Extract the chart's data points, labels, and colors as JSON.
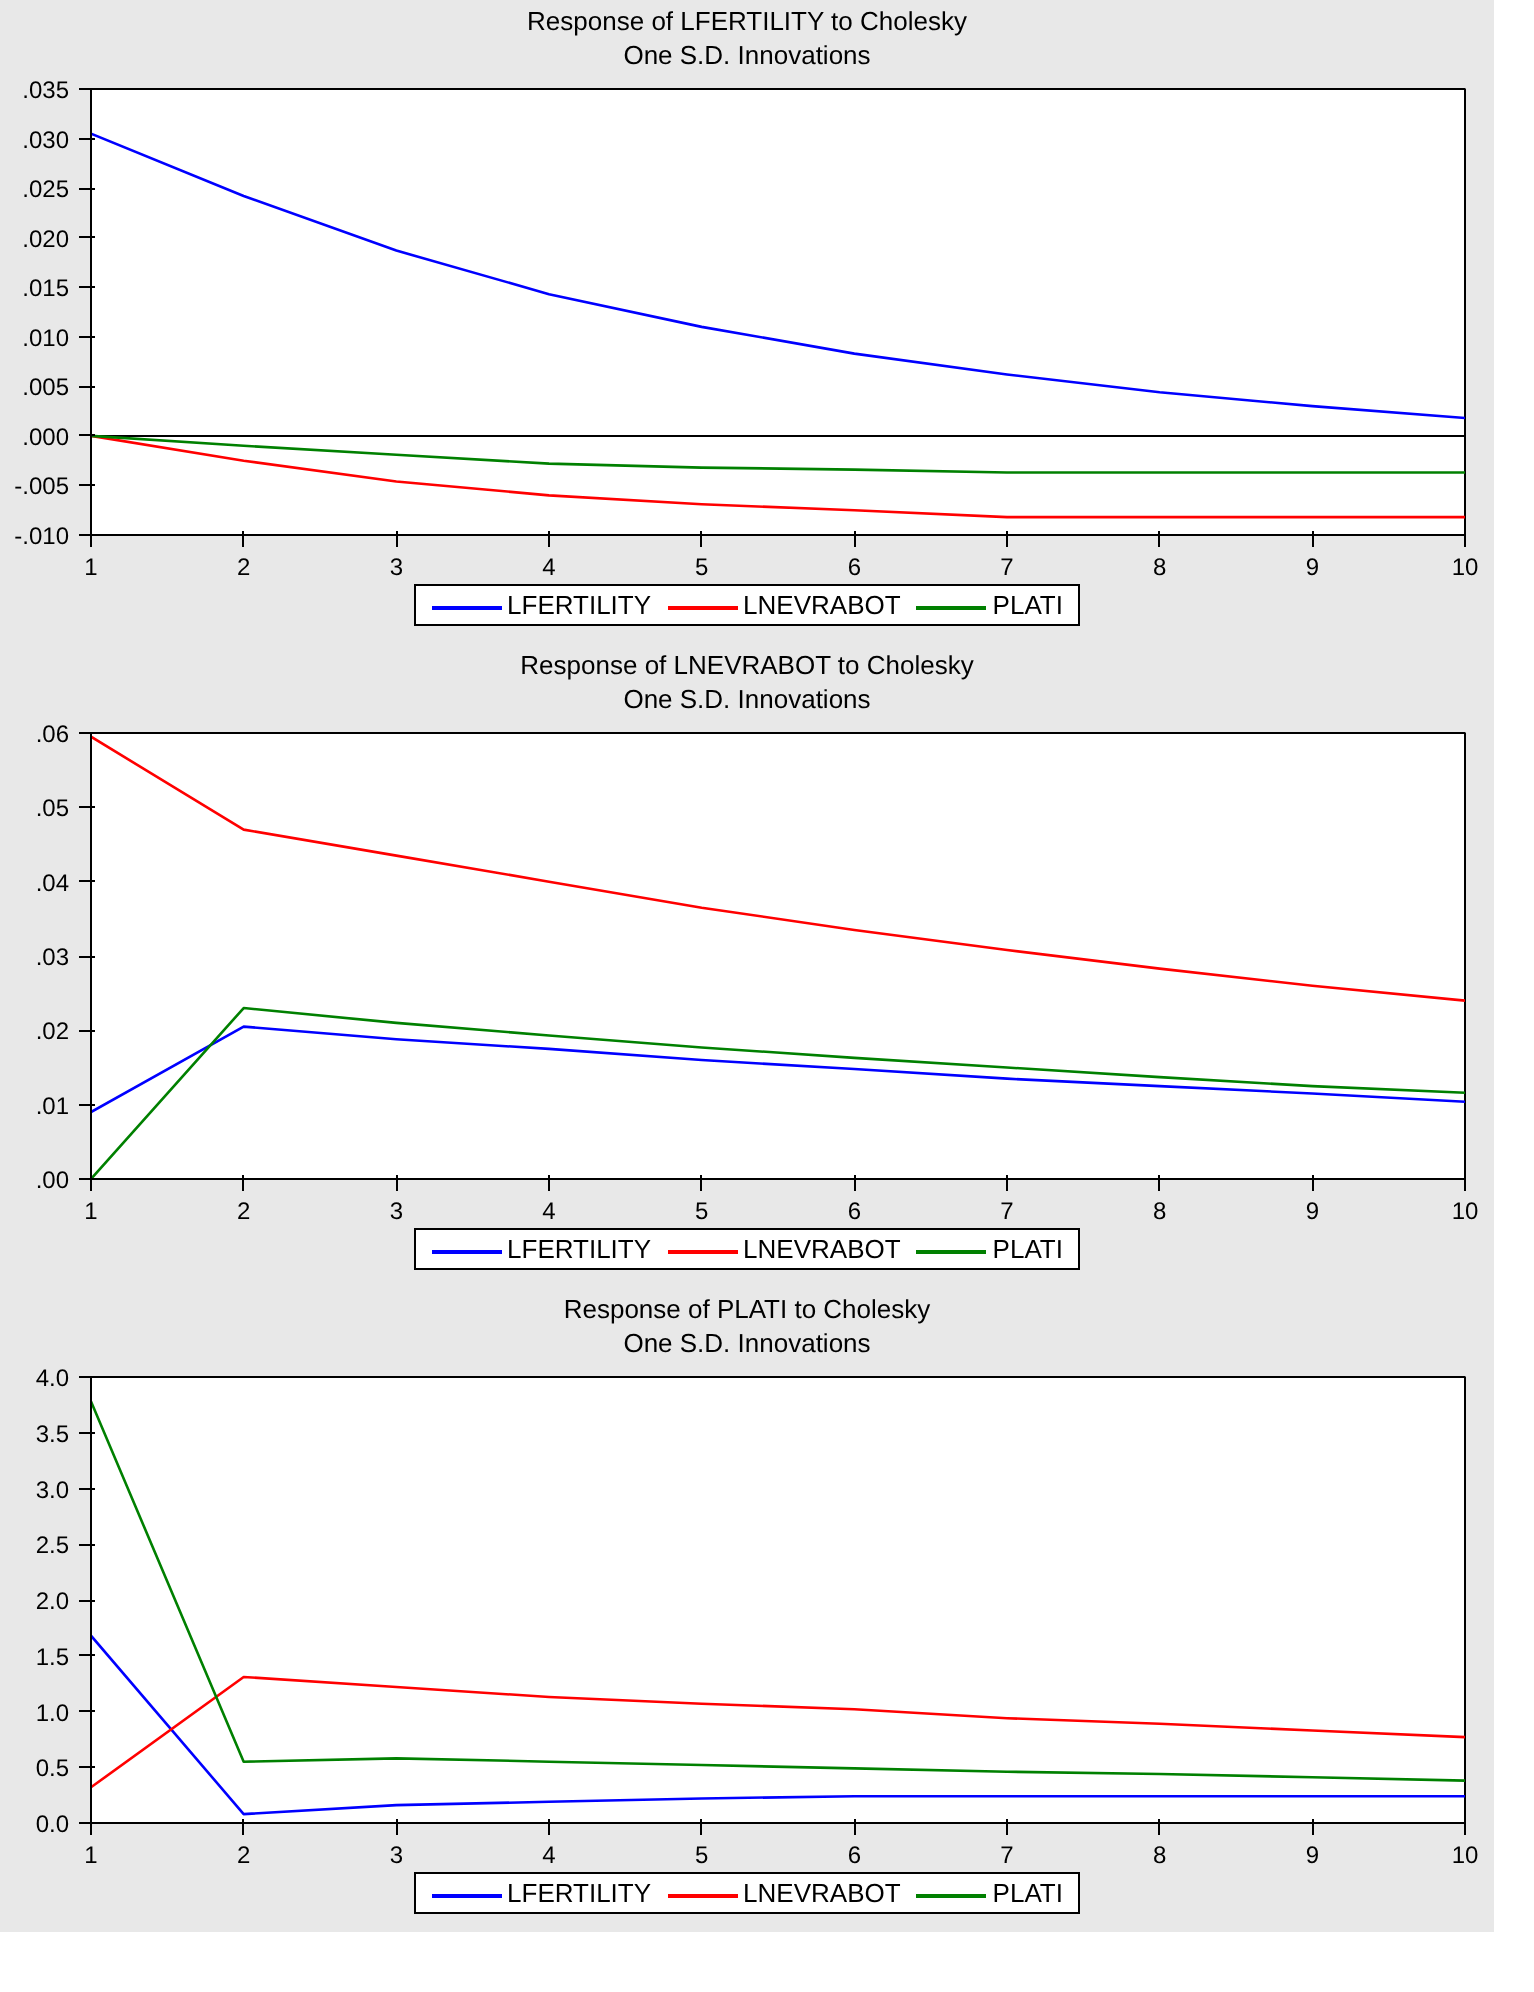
{
  "chart_data": [
    {
      "type": "line",
      "title": "Response of LFERTILITY to Cholesky",
      "subtitle": "One S.D. Innovations",
      "x": [
        1,
        2,
        3,
        4,
        5,
        6,
        7,
        8,
        9,
        10
      ],
      "xlim": [
        1,
        10
      ],
      "xticks": [
        1,
        2,
        3,
        4,
        5,
        6,
        7,
        8,
        9,
        10
      ],
      "ylim": [
        -0.01,
        0.035
      ],
      "yticks": [
        {
          "value": -0.01,
          "label": "-.010"
        },
        {
          "value": -0.005,
          "label": "-.005"
        },
        {
          "value": 0,
          "label": ".000"
        },
        {
          "value": 0.005,
          "label": ".005"
        },
        {
          "value": 0.01,
          "label": ".010"
        },
        {
          "value": 0.015,
          "label": ".015"
        },
        {
          "value": 0.02,
          "label": ".020"
        },
        {
          "value": 0.025,
          "label": ".025"
        },
        {
          "value": 0.03,
          "label": ".030"
        },
        {
          "value": 0.035,
          "label": ".035"
        }
      ],
      "grid": false,
      "legend": "bottom",
      "marker": "none",
      "line_style": "solid",
      "ref_lines": [
        {
          "axis": "y",
          "value": 0,
          "color": "#000000"
        }
      ],
      "series": [
        {
          "name": "LFERTILITY",
          "color": "#0000ff",
          "values": [
            0.0305,
            0.0242,
            0.0187,
            0.0143,
            0.011,
            0.0083,
            0.0062,
            0.0044,
            0.003,
            0.0018
          ]
        },
        {
          "name": "LNEVRABOT",
          "color": "#ff0000",
          "values": [
            0,
            -0.0025,
            -0.0046,
            -0.006,
            -0.0069,
            -0.0075,
            -0.0082,
            -0.0082,
            -0.0082,
            -0.0082
          ]
        },
        {
          "name": "PLATI",
          "color": "#008000",
          "values": [
            0,
            -0.001,
            -0.0019,
            -0.0028,
            -0.0032,
            -0.0034,
            -0.0037,
            -0.0037,
            -0.0037,
            -0.0037
          ]
        }
      ]
    },
    {
      "type": "line",
      "title": "Response of LNEVRABOT to Cholesky",
      "subtitle": "One S.D. Innovations",
      "x": [
        1,
        2,
        3,
        4,
        5,
        6,
        7,
        8,
        9,
        10
      ],
      "xlim": [
        1,
        10
      ],
      "xticks": [
        1,
        2,
        3,
        4,
        5,
        6,
        7,
        8,
        9,
        10
      ],
      "ylim": [
        0,
        0.06
      ],
      "yticks": [
        {
          "value": 0,
          "label": ".00"
        },
        {
          "value": 0.01,
          "label": ".01"
        },
        {
          "value": 0.02,
          "label": ".02"
        },
        {
          "value": 0.03,
          "label": ".03"
        },
        {
          "value": 0.04,
          "label": ".04"
        },
        {
          "value": 0.05,
          "label": ".05"
        },
        {
          "value": 0.06,
          "label": ".06"
        }
      ],
      "grid": false,
      "legend": "bottom",
      "marker": "none",
      "line_style": "solid",
      "series": [
        {
          "name": "LFERTILITY",
          "color": "#0000ff",
          "values": [
            0.009,
            0.0205,
            0.0188,
            0.0175,
            0.016,
            0.0148,
            0.0135,
            0.0125,
            0.0115,
            0.0104
          ]
        },
        {
          "name": "LNEVRABOT",
          "color": "#ff0000",
          "values": [
            0.0595,
            0.047,
            0.0435,
            0.04,
            0.0365,
            0.0335,
            0.0308,
            0.0283,
            0.026,
            0.024
          ]
        },
        {
          "name": "PLATI",
          "color": "#008000",
          "values": [
            0,
            0.023,
            0.021,
            0.0193,
            0.0177,
            0.0163,
            0.015,
            0.0137,
            0.0125,
            0.0116
          ]
        }
      ]
    },
    {
      "type": "line",
      "title": "Response of PLATI to Cholesky",
      "subtitle": "One S.D. Innovations",
      "x": [
        1,
        2,
        3,
        4,
        5,
        6,
        7,
        8,
        9,
        10
      ],
      "xlim": [
        1,
        10
      ],
      "xticks": [
        1,
        2,
        3,
        4,
        5,
        6,
        7,
        8,
        9,
        10
      ],
      "ylim": [
        0,
        4
      ],
      "yticks": [
        {
          "value": 0,
          "label": "0.0"
        },
        {
          "value": 0.5,
          "label": "0.5"
        },
        {
          "value": 1,
          "label": "1.0"
        },
        {
          "value": 1.5,
          "label": "1.5"
        },
        {
          "value": 2,
          "label": "2.0"
        },
        {
          "value": 2.5,
          "label": "2.5"
        },
        {
          "value": 3,
          "label": "3.0"
        },
        {
          "value": 3.5,
          "label": "3.5"
        },
        {
          "value": 4,
          "label": "4.0"
        }
      ],
      "grid": false,
      "legend": "bottom",
      "marker": "none",
      "line_style": "solid",
      "series": [
        {
          "name": "LFERTILITY",
          "color": "#0000ff",
          "values": [
            1.68,
            0.08,
            0.16,
            0.19,
            0.22,
            0.24,
            0.24,
            0.24,
            0.24,
            0.24
          ]
        },
        {
          "name": "LNEVRABOT",
          "color": "#ff0000",
          "values": [
            0.32,
            1.31,
            1.22,
            1.13,
            1.07,
            1.02,
            0.94,
            0.89,
            0.83,
            0.77
          ]
        },
        {
          "name": "PLATI",
          "color": "#008000",
          "values": [
            3.78,
            0.55,
            0.58,
            0.55,
            0.52,
            0.49,
            0.46,
            0.44,
            0.41,
            0.38
          ]
        }
      ]
    }
  ]
}
